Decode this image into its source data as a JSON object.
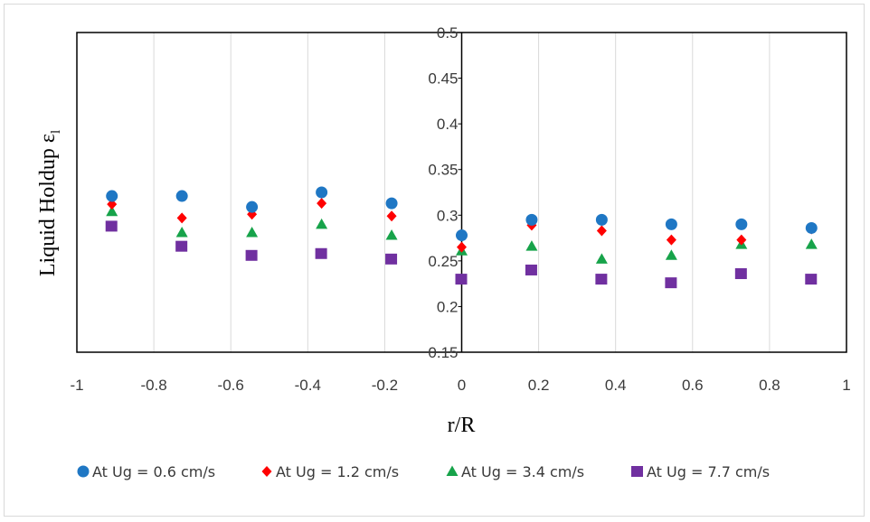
{
  "chart_data": {
    "type": "scatter",
    "xlabel": "r/R",
    "ylabel": "Liquid  Holdup  ε",
    "ylabel_subscript": "l",
    "xlim": [
      -1,
      1
    ],
    "ylim": [
      0.15,
      0.5
    ],
    "x_ticks": [
      "-1",
      "-0.8",
      "-0.6",
      "-0.4",
      "-0.2",
      "0",
      "0.2",
      "0.4",
      "0.6",
      "0.8",
      "1"
    ],
    "y_ticks": [
      "0.15",
      "0.2",
      "0.25",
      "0.3",
      "0.35",
      "0.4",
      "0.45",
      "0.5"
    ],
    "grid": "vertical",
    "legend_position": "bottom",
    "x": [
      -0.909,
      -0.727,
      -0.545,
      -0.364,
      -0.182,
      0.0,
      0.182,
      0.364,
      0.545,
      0.727,
      0.909
    ],
    "series": [
      {
        "name": "At Ug = 0.6 cm/s",
        "color": "#1f77c4",
        "marker": "circle",
        "values": [
          0.321,
          0.321,
          0.309,
          0.325,
          0.313,
          0.278,
          0.295,
          0.295,
          0.29,
          0.29,
          0.286
        ]
      },
      {
        "name": "At Ug = 1.2 cm/s",
        "color": "#ff0000",
        "marker": "diamond",
        "values": [
          0.312,
          0.297,
          0.301,
          0.313,
          0.299,
          0.265,
          0.289,
          0.283,
          0.273,
          0.273,
          0.285
        ]
      },
      {
        "name": "At Ug = 3.4 cm/s",
        "color": "#17a34a",
        "marker": "triangle",
        "values": [
          0.304,
          0.281,
          0.281,
          0.29,
          0.278,
          0.261,
          0.266,
          0.252,
          0.256,
          0.268,
          0.268
        ]
      },
      {
        "name": "At Ug = 7.7 cm/s",
        "color": "#7030a0",
        "marker": "square",
        "values": [
          0.288,
          0.266,
          0.256,
          0.258,
          0.252,
          0.23,
          0.24,
          0.23,
          0.226,
          0.236,
          0.23
        ]
      }
    ]
  }
}
